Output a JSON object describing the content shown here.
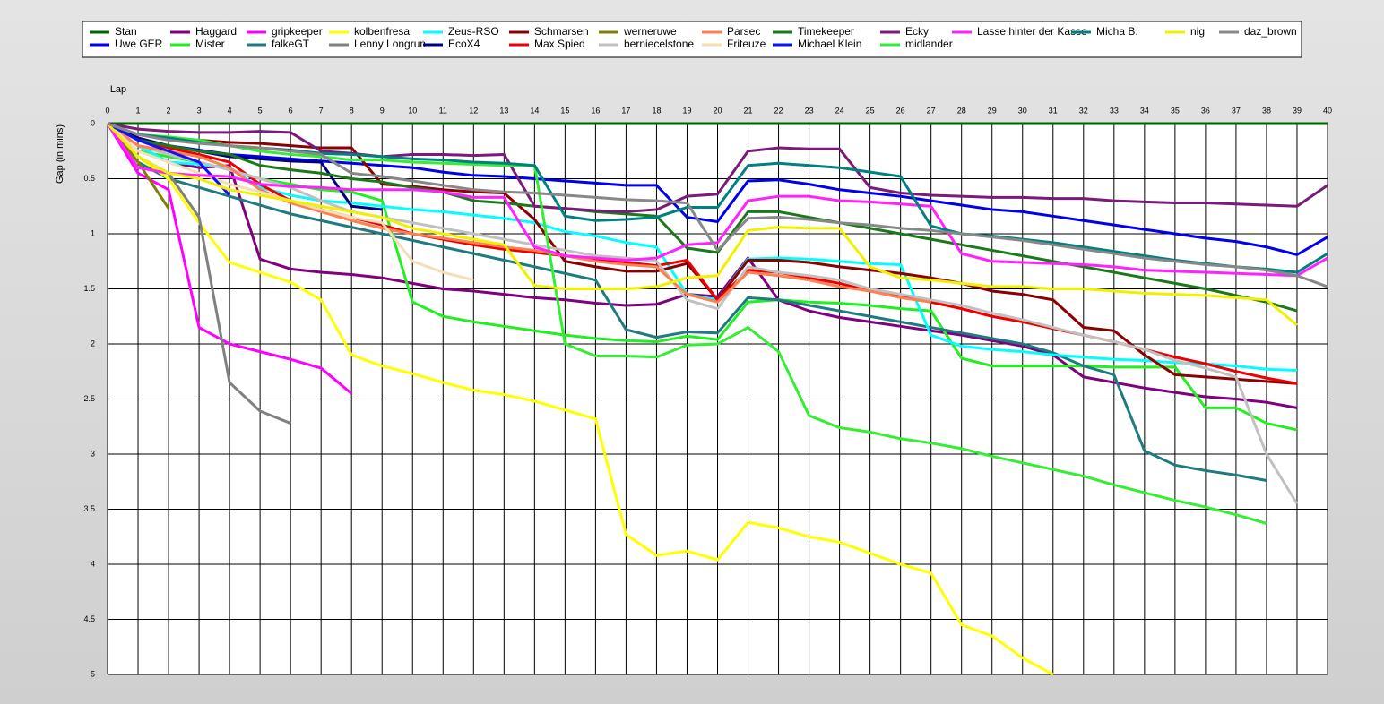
{
  "chart_data": {
    "type": "line",
    "x_label": "Lap",
    "y_label": "Gap (in mins)",
    "x": [
      0,
      1,
      2,
      3,
      4,
      5,
      6,
      7,
      8,
      9,
      10,
      11,
      12,
      13,
      14,
      15,
      16,
      17,
      18,
      19,
      20,
      21,
      22,
      23,
      24,
      25,
      26,
      27,
      28,
      29,
      30,
      31,
      32,
      33,
      34,
      35,
      36,
      37,
      38,
      39,
      40
    ],
    "xlim": [
      0,
      40
    ],
    "xticks": [
      0,
      1,
      2,
      3,
      4,
      5,
      6,
      7,
      8,
      9,
      10,
      11,
      12,
      13,
      14,
      15,
      16,
      17,
      18,
      19,
      20,
      21,
      22,
      23,
      24,
      25,
      26,
      27,
      28,
      29,
      30,
      31,
      32,
      33,
      34,
      35,
      36,
      37,
      38,
      39,
      40
    ],
    "ylim": [
      0,
      5
    ],
    "y_inverted": true,
    "yticks": [
      0,
      0.5,
      1,
      1.5,
      2,
      2.5,
      3,
      3.5,
      4,
      4.5,
      5
    ],
    "grid": true,
    "series": [
      {
        "name": "Stan",
        "color": "#006400",
        "values": [
          0,
          0,
          0,
          0,
          0,
          0,
          0,
          0,
          0,
          0,
          0,
          0,
          0,
          0,
          0,
          0,
          0,
          0,
          0,
          0,
          0,
          0,
          0,
          0,
          0,
          0,
          0,
          0,
          0,
          0,
          0,
          0,
          0,
          0,
          0,
          0,
          0,
          0,
          0,
          0,
          0
        ]
      },
      {
        "name": "Uwe GER",
        "color": "#0000ee",
        "values": [
          0,
          0.15,
          0.2,
          0.24,
          0.28,
          0.3,
          0.32,
          0.34,
          0.36,
          0.38,
          0.4,
          0.44,
          0.47,
          0.48,
          0.5,
          0.52,
          0.54,
          0.56,
          0.56,
          0.85,
          0.89,
          0.52,
          0.51,
          0.55,
          0.6,
          0.63,
          0.66,
          0.7,
          0.74,
          0.78,
          0.8,
          0.84,
          0.88,
          0.92,
          0.96,
          1.0,
          1.04,
          1.07,
          1.12,
          1.19,
          1.03
        ]
      },
      {
        "name": "Haggard",
        "color": "#800080",
        "values": [
          0,
          0.2,
          0.35,
          0.4,
          0.38,
          1.23,
          1.32,
          1.35,
          1.37,
          1.4,
          1.45,
          1.5,
          1.52,
          1.55,
          1.58,
          1.6,
          1.63,
          1.65,
          1.64,
          1.55,
          1.57,
          1.22,
          1.6,
          1.7,
          1.76,
          1.8,
          1.84,
          1.88,
          1.92,
          1.97,
          2.02,
          2.1,
          2.3,
          2.35,
          2.4,
          2.44,
          2.48,
          2.5,
          2.53,
          2.58,
          null
        ]
      },
      {
        "name": "Mister",
        "color": "#22ee22",
        "values": [
          0,
          0.25,
          0.3,
          0.35,
          0.42,
          0.5,
          0.55,
          0.6,
          0.62,
          0.7,
          1.62,
          1.75,
          1.8,
          1.84,
          1.88,
          1.92,
          1.95,
          1.97,
          1.98,
          1.93,
          1.96,
          1.62,
          1.6,
          1.62,
          1.63,
          1.65,
          1.68,
          1.7,
          2.13,
          2.2,
          2.2,
          2.2,
          2.2,
          2.21,
          2.21,
          2.21,
          2.58,
          2.58,
          2.72,
          2.78,
          null
        ]
      },
      {
        "name": "gripkeeper",
        "color": "#ff00ff",
        "values": [
          0,
          0.45,
          0.6,
          1.85,
          2.0,
          2.07,
          2.14,
          2.22,
          2.45,
          null,
          null,
          null,
          null,
          null,
          null,
          null,
          null,
          null,
          null,
          null,
          null,
          null,
          null,
          null,
          null,
          null,
          null,
          null,
          null,
          null,
          null,
          null,
          null,
          null,
          null,
          null,
          null,
          null,
          null,
          null,
          null
        ]
      },
      {
        "name": "falkeGT",
        "color": "#1e7b80",
        "values": [
          0,
          0.35,
          0.5,
          0.58,
          0.66,
          0.74,
          0.82,
          0.88,
          0.94,
          1.0,
          1.06,
          1.12,
          1.18,
          1.24,
          1.3,
          1.36,
          1.42,
          1.87,
          1.94,
          1.89,
          1.9,
          1.58,
          1.6,
          1.65,
          1.7,
          1.75,
          1.8,
          1.85,
          1.9,
          1.95,
          2.0,
          2.08,
          2.2,
          2.28,
          2.97,
          3.1,
          3.15,
          3.19,
          3.24,
          null,
          null
        ]
      },
      {
        "name": "kolbenfresa",
        "color": "#ffff00",
        "values": [
          0,
          0.3,
          0.5,
          0.9,
          1.26,
          1.35,
          1.44,
          1.6,
          2.1,
          2.2,
          2.27,
          2.35,
          2.42,
          2.46,
          2.52,
          2.6,
          2.68,
          3.73,
          3.92,
          3.88,
          3.96,
          3.62,
          3.67,
          3.75,
          3.8,
          3.9,
          4.0,
          4.08,
          4.55,
          4.65,
          4.85,
          5.0,
          null,
          null,
          null,
          null,
          null,
          null,
          null,
          null,
          null
        ]
      },
      {
        "name": "Lenny Longrun",
        "color": "#808080",
        "values": [
          0,
          0.3,
          0.45,
          0.85,
          2.35,
          2.61,
          2.72,
          null,
          null,
          null,
          null,
          null,
          null,
          null,
          null,
          null,
          null,
          null,
          null,
          null,
          null,
          null,
          null,
          null,
          null,
          null,
          null,
          null,
          null,
          null,
          null,
          null,
          null,
          null,
          null,
          null,
          null,
          null,
          null,
          null,
          null
        ]
      },
      {
        "name": "Zeus-RSO",
        "color": "#00ffff",
        "values": [
          0,
          0.2,
          0.35,
          0.37,
          0.4,
          0.58,
          0.65,
          0.7,
          0.72,
          0.75,
          0.78,
          0.8,
          0.83,
          0.86,
          0.9,
          0.98,
          1.02,
          1.08,
          1.12,
          1.55,
          1.6,
          1.23,
          1.22,
          1.23,
          1.25,
          1.27,
          1.28,
          1.92,
          2.02,
          2.05,
          2.07,
          2.1,
          2.12,
          2.14,
          2.15,
          2.17,
          2.18,
          2.2,
          2.23,
          2.24,
          null
        ]
      },
      {
        "name": "EcoX4",
        "color": "#000080",
        "values": [
          0,
          0.13,
          0.2,
          0.25,
          0.3,
          0.32,
          0.34,
          0.35,
          0.75,
          0.78,
          null,
          null,
          null,
          null,
          null,
          null,
          null,
          null,
          null,
          null,
          null,
          null,
          null,
          null,
          null,
          null,
          null,
          null,
          null,
          null,
          null,
          null,
          null,
          null,
          null,
          null,
          null,
          null,
          null,
          null,
          null
        ]
      },
      {
        "name": "Schmarsen",
        "color": "#8b0000",
        "values": [
          0,
          0.1,
          0.13,
          0.15,
          0.17,
          0.18,
          0.2,
          0.22,
          0.22,
          0.55,
          0.57,
          0.6,
          0.62,
          0.63,
          0.87,
          1.25,
          1.3,
          1.34,
          1.34,
          1.27,
          1.6,
          1.24,
          1.24,
          1.26,
          1.3,
          1.33,
          1.36,
          1.4,
          1.45,
          1.52,
          1.55,
          1.6,
          1.85,
          1.88,
          2.1,
          2.28,
          2.3,
          2.32,
          2.34,
          2.36,
          null
        ]
      },
      {
        "name": "Max Spied",
        "color": "#ee0000",
        "values": [
          0,
          0.15,
          0.22,
          0.28,
          0.35,
          0.55,
          0.7,
          0.78,
          0.85,
          0.92,
          1.0,
          1.05,
          1.1,
          1.14,
          1.17,
          1.2,
          1.23,
          1.26,
          1.29,
          1.24,
          1.6,
          1.33,
          1.35,
          1.4,
          1.45,
          1.52,
          1.57,
          1.62,
          1.68,
          1.75,
          1.8,
          1.86,
          1.92,
          1.98,
          2.05,
          2.12,
          2.18,
          2.25,
          2.31,
          2.36,
          null
        ]
      },
      {
        "name": "werneruwe",
        "color": "#808000",
        "values": [
          0,
          0.35,
          0.77,
          null,
          null,
          null,
          null,
          null,
          null,
          null,
          null,
          null,
          null,
          null,
          null,
          null,
          null,
          null,
          null,
          null,
          null,
          null,
          null,
          null,
          null,
          null,
          null,
          null,
          null,
          null,
          null,
          null,
          null,
          null,
          null,
          null,
          null,
          null,
          null,
          null,
          null
        ]
      },
      {
        "name": "berniecelstone",
        "color": "#c0c0c0",
        "values": [
          0,
          0.2,
          0.28,
          0.35,
          0.42,
          0.5,
          0.58,
          0.7,
          0.8,
          0.85,
          0.9,
          0.95,
          1.0,
          1.05,
          1.1,
          1.15,
          1.2,
          1.22,
          1.25,
          1.6,
          1.68,
          1.3,
          1.35,
          1.38,
          1.42,
          1.5,
          1.55,
          1.6,
          1.65,
          1.72,
          1.78,
          1.85,
          1.92,
          1.98,
          2.05,
          2.15,
          2.22,
          2.3,
          3.0,
          3.45,
          null
        ]
      },
      {
        "name": "Parsec",
        "color": "#ff7f50",
        "values": [
          0,
          0.2,
          0.25,
          0.3,
          0.4,
          0.6,
          0.72,
          0.8,
          0.88,
          0.95,
          1.0,
          1.04,
          1.08,
          1.12,
          1.15,
          1.2,
          1.25,
          1.28,
          1.3,
          1.55,
          1.62,
          1.35,
          1.38,
          1.42,
          1.48,
          1.52,
          1.58,
          1.62,
          null,
          null,
          null,
          null,
          null,
          null,
          null,
          null,
          null,
          null,
          null,
          null,
          null
        ]
      },
      {
        "name": "Friteuze",
        "color": "#f5deb3",
        "values": [
          0,
          0.25,
          0.35,
          0.45,
          0.55,
          0.62,
          0.7,
          0.78,
          0.85,
          0.9,
          1.25,
          1.35,
          1.42,
          null,
          null,
          null,
          null,
          null,
          null,
          null,
          null,
          null,
          null,
          null,
          null,
          null,
          null,
          null,
          null,
          null,
          null,
          null,
          null,
          null,
          null,
          null,
          null,
          null,
          null,
          null,
          null
        ]
      },
      {
        "name": "Timekeeper",
        "color": "#1a7a1a",
        "values": [
          0,
          0.15,
          0.2,
          0.25,
          0.28,
          0.38,
          0.42,
          0.45,
          0.5,
          0.53,
          0.58,
          0.62,
          0.7,
          0.72,
          0.75,
          0.77,
          0.8,
          0.82,
          0.84,
          1.13,
          1.17,
          0.8,
          0.8,
          0.85,
          0.9,
          0.95,
          1.0,
          1.05,
          1.1,
          1.15,
          1.2,
          1.25,
          1.3,
          1.35,
          1.4,
          1.45,
          1.5,
          1.56,
          1.62,
          1.7,
          null
        ]
      },
      {
        "name": "Michael Klein",
        "color": "#1010ff",
        "values": [
          0,
          0.15,
          0.25,
          0.35,
          0.65,
          null,
          null,
          null,
          null,
          null,
          null,
          null,
          null,
          null,
          null,
          null,
          null,
          null,
          null,
          null,
          null,
          null,
          null,
          null,
          null,
          null,
          null,
          null,
          null,
          null,
          null,
          null,
          null,
          null,
          null,
          null,
          null,
          null,
          null,
          null,
          null
        ]
      },
      {
        "name": "Ecky",
        "color": "#7a1a7a",
        "values": [
          0,
          0.05,
          0.07,
          0.08,
          0.08,
          0.07,
          0.08,
          0.25,
          0.27,
          0.3,
          0.28,
          0.28,
          0.29,
          0.28,
          0.75,
          0.77,
          0.79,
          0.8,
          0.78,
          0.66,
          0.64,
          0.25,
          0.22,
          0.23,
          0.23,
          0.58,
          0.63,
          0.65,
          0.66,
          0.67,
          0.67,
          0.68,
          0.68,
          0.7,
          0.71,
          0.72,
          0.72,
          0.73,
          0.74,
          0.75,
          0.56
        ]
      },
      {
        "name": "midlander",
        "color": "#33ee33",
        "values": [
          0,
          0.1,
          0.12,
          0.15,
          0.2,
          0.25,
          0.28,
          0.3,
          0.33,
          0.33,
          0.35,
          0.36,
          0.37,
          0.38,
          0.38,
          2.0,
          2.11,
          2.11,
          2.12,
          2.01,
          2.0,
          1.85,
          2.07,
          2.65,
          2.76,
          2.8,
          2.86,
          2.9,
          2.95,
          3.02,
          3.08,
          3.14,
          3.2,
          3.28,
          3.35,
          3.42,
          3.48,
          3.55,
          3.63,
          null,
          null
        ]
      },
      {
        "name": "Lasse hinter der Kasse",
        "color": "#ff22ff",
        "values": [
          0,
          0.4,
          0.45,
          0.47,
          0.48,
          0.55,
          0.57,
          0.58,
          0.6,
          0.6,
          0.6,
          0.62,
          0.67,
          0.67,
          1.12,
          1.2,
          1.22,
          1.24,
          1.22,
          1.1,
          1.08,
          0.7,
          0.66,
          0.66,
          0.7,
          0.71,
          0.73,
          0.75,
          1.18,
          1.25,
          1.26,
          1.27,
          1.28,
          1.3,
          1.33,
          1.34,
          1.35,
          1.36,
          1.37,
          1.38,
          1.22
        ]
      },
      {
        "name": "Micha B.",
        "color": "#008080",
        "values": [
          0,
          0.1,
          0.13,
          0.17,
          0.2,
          0.22,
          0.24,
          0.27,
          0.28,
          0.3,
          0.32,
          0.33,
          0.35,
          0.36,
          0.38,
          0.84,
          0.88,
          0.87,
          0.85,
          0.76,
          0.76,
          0.38,
          0.36,
          0.38,
          0.4,
          0.44,
          0.48,
          0.93,
          1.0,
          1.02,
          1.05,
          1.08,
          1.12,
          1.16,
          1.2,
          1.24,
          1.27,
          1.3,
          1.32,
          1.35,
          1.18
        ]
      },
      {
        "name": "nig",
        "color": "#f0f000",
        "values": [
          0,
          0.3,
          0.45,
          0.5,
          0.6,
          0.65,
          0.7,
          0.75,
          0.8,
          0.85,
          0.95,
          1.0,
          1.05,
          1.1,
          1.47,
          1.5,
          1.5,
          1.5,
          1.48,
          1.4,
          1.38,
          0.97,
          0.94,
          0.95,
          0.95,
          1.3,
          1.4,
          1.42,
          1.45,
          1.48,
          1.48,
          1.5,
          1.5,
          1.52,
          1.54,
          1.55,
          1.56,
          1.58,
          1.6,
          1.83,
          null
        ]
      },
      {
        "name": "daz_brown",
        "color": "#888888",
        "values": [
          0,
          0.1,
          0.15,
          0.18,
          0.2,
          0.22,
          0.25,
          0.28,
          0.45,
          0.48,
          0.52,
          0.56,
          0.6,
          0.62,
          0.63,
          0.65,
          0.67,
          0.69,
          0.7,
          0.72,
          1.15,
          0.86,
          0.85,
          0.87,
          0.9,
          0.92,
          0.95,
          0.97,
          1.0,
          1.03,
          1.06,
          1.1,
          1.14,
          1.18,
          1.22,
          1.25,
          1.28,
          1.3,
          1.33,
          1.38,
          1.48
        ]
      }
    ]
  }
}
